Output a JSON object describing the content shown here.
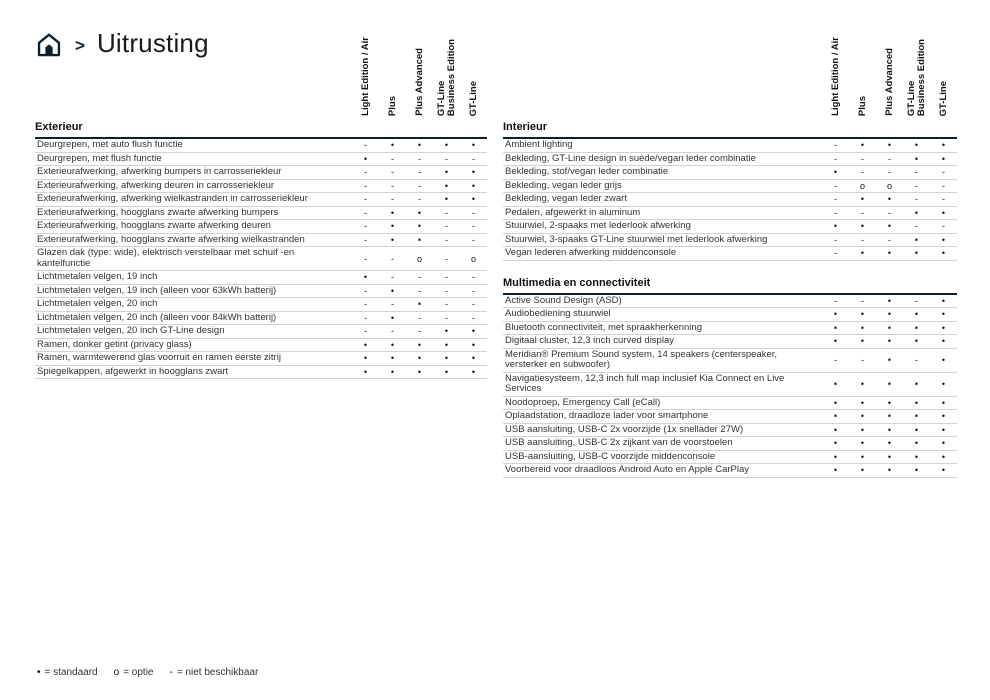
{
  "breadcrumb": {
    "separator": ">",
    "title": "Uitrusting"
  },
  "columns": [
    "Light Edition / Air",
    "Plus",
    "Plus Advanced",
    "GT-Line\nBusiness Edition",
    "GT-Line"
  ],
  "left_table": {
    "sections": [
      {
        "title": "Exterieur",
        "rows": [
          {
            "label": "Deurgrepen, met auto flush functie",
            "marks": [
              "-",
              "•",
              "•",
              "•",
              "•"
            ]
          },
          {
            "label": "Deurgrepen, met flush functie",
            "marks": [
              "•",
              "-",
              "-",
              "-",
              "-"
            ]
          },
          {
            "label": "Exterieurafwerking, afwerking bumpers in carrosseriekleur",
            "marks": [
              "-",
              "-",
              "-",
              "•",
              "•"
            ]
          },
          {
            "label": "Exterieurafwerking, afwerking deuren in carrosseriekleur",
            "marks": [
              "-",
              "-",
              "-",
              "•",
              "•"
            ]
          },
          {
            "label": "Exterieurafwerking, afwerking wielkastranden in carrosseriekleur",
            "marks": [
              "-",
              "-",
              "-",
              "•",
              "•"
            ]
          },
          {
            "label": "Exterieurafwerking, hoogglans zwarte afwerking bumpers",
            "marks": [
              "-",
              "•",
              "•",
              "-",
              "-"
            ]
          },
          {
            "label": "Exterieurafwerking, hoogglans zwarte afwerking deuren",
            "marks": [
              "-",
              "•",
              "•",
              "-",
              "-"
            ]
          },
          {
            "label": "Exterieurafwerking, hoogglans zwarte afwerking wielkastranden",
            "marks": [
              "-",
              "•",
              "•",
              "-",
              "-"
            ]
          },
          {
            "label": "Glazen dak (type: wide), elektrisch verstelbaar met schuif -en kantelfunctie",
            "marks": [
              "-",
              "-",
              "o",
              "-",
              "o"
            ]
          },
          {
            "label": "Lichtmetalen velgen, 19 inch",
            "marks": [
              "•",
              "-",
              "-",
              "-",
              "-"
            ]
          },
          {
            "label": "Lichtmetalen velgen, 19 inch (alleen voor 63kWh batterij)",
            "marks": [
              "-",
              "•",
              "-",
              "-",
              "-"
            ]
          },
          {
            "label": "Lichtmetalen velgen, 20 inch",
            "marks": [
              "-",
              "-",
              "•",
              "-",
              "-"
            ]
          },
          {
            "label": "Lichtmetalen velgen, 20 inch (alleen voor 84kWh batterij)",
            "marks": [
              "-",
              "•",
              "-",
              "-",
              "-"
            ]
          },
          {
            "label": "Lichtmetalen velgen, 20 inch GT-Line design",
            "marks": [
              "-",
              "-",
              "-",
              "•",
              "•"
            ]
          },
          {
            "label": "Ramen, donker getint (privacy glass)",
            "marks": [
              "•",
              "•",
              "•",
              "•",
              "•"
            ]
          },
          {
            "label": "Ramen, warmtewerend glas voorruit en ramen eerste zitrij",
            "marks": [
              "•",
              "•",
              "•",
              "•",
              "•"
            ]
          },
          {
            "label": "Spiegelkappen, afgewerkt in hoogglans zwart",
            "marks": [
              "•",
              "•",
              "•",
              "•",
              "•"
            ]
          }
        ]
      }
    ]
  },
  "right_table": {
    "sections": [
      {
        "title": "Interieur",
        "rows": [
          {
            "label": "Ambient lighting",
            "marks": [
              "-",
              "•",
              "•",
              "•",
              "•"
            ]
          },
          {
            "label": "Bekleding, GT-Line design in suède/vegan leder combinatie",
            "marks": [
              "-",
              "-",
              "-",
              "•",
              "•"
            ]
          },
          {
            "label": "Bekleding, stof/vegan leder combinatie",
            "marks": [
              "•",
              "-",
              "-",
              "-",
              "-"
            ]
          },
          {
            "label": "Bekleding, vegan leder grijs",
            "marks": [
              "-",
              "o",
              "o",
              "-",
              "-"
            ]
          },
          {
            "label": "Bekleding, vegan leder zwart",
            "marks": [
              "-",
              "•",
              "•",
              "-",
              "-"
            ]
          },
          {
            "label": "Pedalen, afgewerkt in aluminum",
            "marks": [
              "-",
              "-",
              "-",
              "•",
              "•"
            ]
          },
          {
            "label": "Stuurwiel, 2-spaaks met lederlook afwerking",
            "marks": [
              "•",
              "•",
              "•",
              "-",
              "-"
            ]
          },
          {
            "label": "Stuurwiel, 3-spaaks GT-Line stuurwiel met lederlook afwerking",
            "marks": [
              "-",
              "-",
              "-",
              "•",
              "•"
            ]
          },
          {
            "label": "Vegan lederen afwerking middenconsole",
            "marks": [
              "-",
              "•",
              "•",
              "•",
              "•"
            ]
          }
        ]
      },
      {
        "title": "Multimedia en connectiviteit",
        "rows": [
          {
            "label": "Active Sound Design (ASD)",
            "marks": [
              "-",
              "-",
              "•",
              "-",
              "•"
            ]
          },
          {
            "label": "Audiobediening stuurwiel",
            "marks": [
              "•",
              "•",
              "•",
              "•",
              "•"
            ]
          },
          {
            "label": "Bluetooth connectiviteit, met spraakherkenning",
            "marks": [
              "•",
              "•",
              "•",
              "•",
              "•"
            ]
          },
          {
            "label": "Digitaal cluster, 12,3 inch curved display",
            "marks": [
              "•",
              "•",
              "•",
              "•",
              "•"
            ]
          },
          {
            "label": "Meridian® Premium Sound system, 14 speakers (centerspeaker, versterker en subwoofer)",
            "marks": [
              "-",
              "-",
              "•",
              "-",
              "•"
            ]
          },
          {
            "label": "Navigatiesysteem, 12,3 inch full map inclusief Kia Connect en Live Services",
            "marks": [
              "•",
              "•",
              "•",
              "•",
              "•"
            ]
          },
          {
            "label": "Noodoproep, Emergency Call (eCall)",
            "marks": [
              "•",
              "•",
              "•",
              "•",
              "•"
            ]
          },
          {
            "label": "Oplaadstation, draadloze lader voor smartphone",
            "marks": [
              "•",
              "•",
              "•",
              "•",
              "•"
            ]
          },
          {
            "label": "USB aansluiting, USB-C 2x voorzijde (1x snellader 27W)",
            "marks": [
              "•",
              "•",
              "•",
              "•",
              "•"
            ]
          },
          {
            "label": "USB aansluiting, USB-C 2x zijkant van de voorstoelen",
            "marks": [
              "•",
              "•",
              "•",
              "•",
              "•"
            ]
          },
          {
            "label": "USB-aansluiting, USB-C voorzijde middenconsole",
            "marks": [
              "•",
              "•",
              "•",
              "•",
              "•"
            ]
          },
          {
            "label": "Voorbereid voor draadloos Android Auto en Apple CarPlay",
            "marks": [
              "•",
              "•",
              "•",
              "•",
              "•"
            ]
          }
        ]
      }
    ]
  },
  "legend": [
    {
      "symbol": "•",
      "meaning": "= standaard"
    },
    {
      "symbol": "o",
      "meaning": "= optie"
    },
    {
      "symbol": "-",
      "meaning": "= niet beschikbaar"
    }
  ],
  "colors": {
    "accent": "#0b1f2e",
    "text": "#1a1a1a",
    "row_line": "#d2d2d2"
  }
}
